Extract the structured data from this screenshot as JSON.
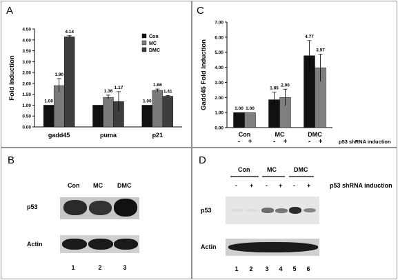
{
  "panels": {
    "a": "A",
    "b": "B",
    "c": "C",
    "d": "D"
  },
  "chart_data": [
    {
      "type": "bar",
      "panel": "A",
      "categories": [
        "gadd45",
        "puma",
        "p21"
      ],
      "series": [
        {
          "name": "Con",
          "values": [
            1.0,
            1.0,
            1.0
          ],
          "errors": [
            0.0,
            0.0,
            0.0
          ],
          "color": "#111111",
          "labels": [
            "1.00",
            "",
            "1.00"
          ]
        },
        {
          "name": "MC",
          "values": [
            1.9,
            1.36,
            1.68
          ],
          "errors": [
            0.32,
            0.1,
            0.06
          ],
          "color": "#7a7a7a",
          "labels": [
            "1.90",
            "1.36",
            "1.68"
          ]
        },
        {
          "name": "DMC",
          "values": [
            4.14,
            1.17,
            1.41
          ],
          "errors": [
            0.05,
            0.45,
            0.03
          ],
          "color": "#3d3d3d",
          "labels": [
            "4.14",
            "1.17",
            "1.41"
          ]
        }
      ],
      "ylabel": "Fold Induction",
      "ylim": [
        0,
        4.5
      ],
      "yticks": [
        "0.00",
        "0.50",
        "1.00",
        "1.50",
        "2.00",
        "2.50",
        "3.00",
        "3.50",
        "4.00",
        "4.50"
      ],
      "legend": "top-right"
    },
    {
      "type": "bar",
      "panel": "C",
      "categories": [
        "Con",
        "MC",
        "DMC"
      ],
      "series": [
        {
          "values": [
            1.0,
            1.85,
            4.77
          ],
          "errors": [
            0.0,
            0.5,
            1.0
          ],
          "color": "#111111",
          "labels": [
            "1.00",
            "1.85",
            "4.77"
          ]
        },
        {
          "values": [
            1.0,
            2.0,
            3.97
          ],
          "errors": [
            0.0,
            0.55,
            0.9
          ],
          "color": "#7f7f7f",
          "labels": [
            "1.00",
            "2.00",
            "3.97"
          ]
        }
      ],
      "ylabel": "Gadd45 Fold Induction",
      "ylim": [
        0,
        7
      ],
      "yticks": [
        "0.00",
        "1.00",
        "2.00",
        "3.00",
        "4.00",
        "5.00",
        "6.00",
        "7.00"
      ],
      "shrna_signs": [
        "-",
        "+",
        "-",
        "+",
        "-",
        "+"
      ],
      "shrna_label": "p53 shRNA induction"
    }
  ],
  "blot_b": {
    "groups": [
      "Con",
      "MC",
      "DMC"
    ],
    "rows": [
      "p53",
      "Actin"
    ],
    "lanes": [
      "1",
      "2",
      "3"
    ]
  },
  "blot_d": {
    "groups": [
      "Con",
      "MC",
      "DMC"
    ],
    "signs": [
      "-",
      "+",
      "-",
      "+",
      "-",
      "+"
    ],
    "shrna_label": "p53 shRNA induction",
    "rows": [
      "p53",
      "Actin"
    ],
    "lanes": [
      "1",
      "2",
      "3",
      "4",
      "5",
      "6"
    ],
    "p53_levels": [
      0.05,
      0.05,
      0.55,
      0.5,
      0.85,
      0.45
    ]
  }
}
